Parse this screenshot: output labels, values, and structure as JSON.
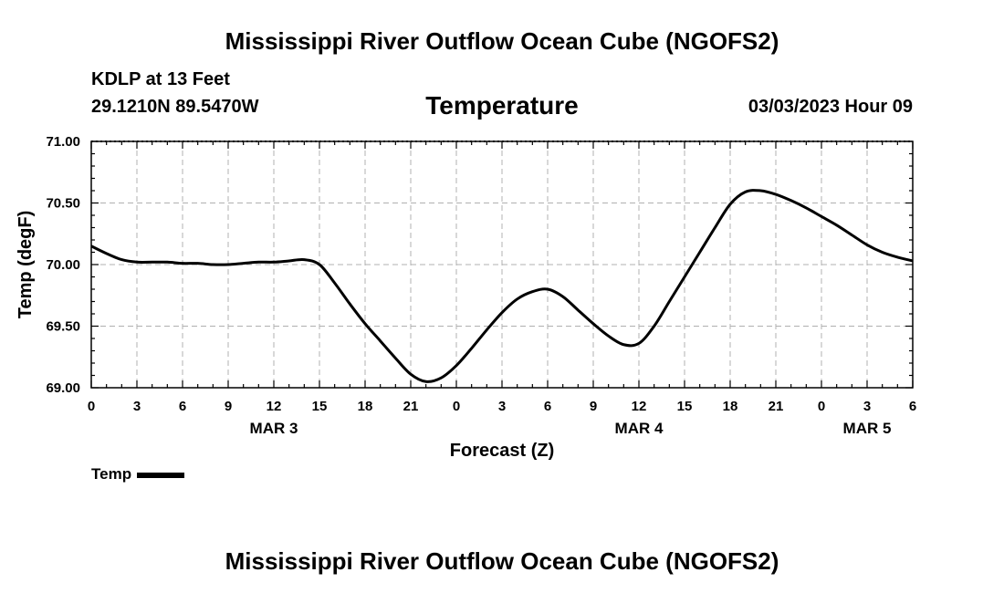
{
  "header": {
    "title": "Mississippi River Outflow Ocean Cube (NGOFS2)",
    "station": "KDLP at 13 Feet",
    "coords": "29.1210N  89.5470W",
    "variable": "Temperature",
    "datetime": "03/03/2023 Hour 09"
  },
  "footer": {
    "title": "Mississippi River Outflow Ocean Cube (NGOFS2)"
  },
  "legend": {
    "label": "Temp"
  },
  "chart_data": {
    "type": "line",
    "title": "Temperature",
    "xlabel": "Forecast (Z)",
    "ylabel": "Temp (degF)",
    "xlim": [
      0,
      54
    ],
    "ylim": [
      69.0,
      71.0
    ],
    "x_ticks": [
      0,
      3,
      6,
      9,
      12,
      15,
      18,
      21,
      24,
      27,
      30,
      33,
      36,
      39,
      42,
      45,
      48,
      51,
      54
    ],
    "x_tick_labels": [
      "0",
      "3",
      "6",
      "9",
      "12",
      "15",
      "18",
      "21",
      "0",
      "3",
      "6",
      "9",
      "12",
      "15",
      "18",
      "21",
      "0",
      "3",
      "6"
    ],
    "y_ticks": [
      69.0,
      69.5,
      70.0,
      70.5,
      71.0
    ],
    "y_tick_labels": [
      "69.00",
      "69.50",
      "70.00",
      "70.50",
      "71.00"
    ],
    "date_labels": [
      {
        "label": "MAR 3",
        "x": 12
      },
      {
        "label": "MAR 4",
        "x": 36
      },
      {
        "label": "MAR 5",
        "x": 51
      }
    ],
    "grid": true,
    "series": [
      {
        "name": "Temp",
        "x": [
          0,
          1,
          2,
          3,
          4,
          5,
          6,
          7,
          8,
          9,
          10,
          11,
          12,
          13,
          14,
          15,
          16,
          17,
          18,
          19,
          20,
          21,
          22,
          23,
          24,
          25,
          26,
          27,
          28,
          29,
          30,
          31,
          32,
          33,
          34,
          35,
          36,
          37,
          38,
          39,
          40,
          41,
          42,
          43,
          44,
          45,
          46,
          47,
          48,
          49,
          50,
          51,
          52,
          53,
          54
        ],
        "values": [
          70.15,
          70.09,
          70.04,
          70.02,
          70.02,
          70.02,
          70.01,
          70.01,
          70.0,
          70.0,
          70.01,
          70.02,
          70.02,
          70.03,
          70.04,
          70.0,
          69.85,
          69.68,
          69.52,
          69.38,
          69.24,
          69.11,
          69.05,
          69.08,
          69.18,
          69.32,
          69.47,
          69.61,
          69.72,
          69.78,
          69.8,
          69.74,
          69.63,
          69.52,
          69.42,
          69.35,
          69.36,
          69.5,
          69.7,
          69.9,
          70.1,
          70.3,
          70.49,
          70.59,
          70.6,
          70.57,
          70.52,
          70.46,
          70.39,
          70.32,
          70.24,
          70.16,
          70.1,
          70.06,
          70.03
        ]
      }
    ]
  }
}
